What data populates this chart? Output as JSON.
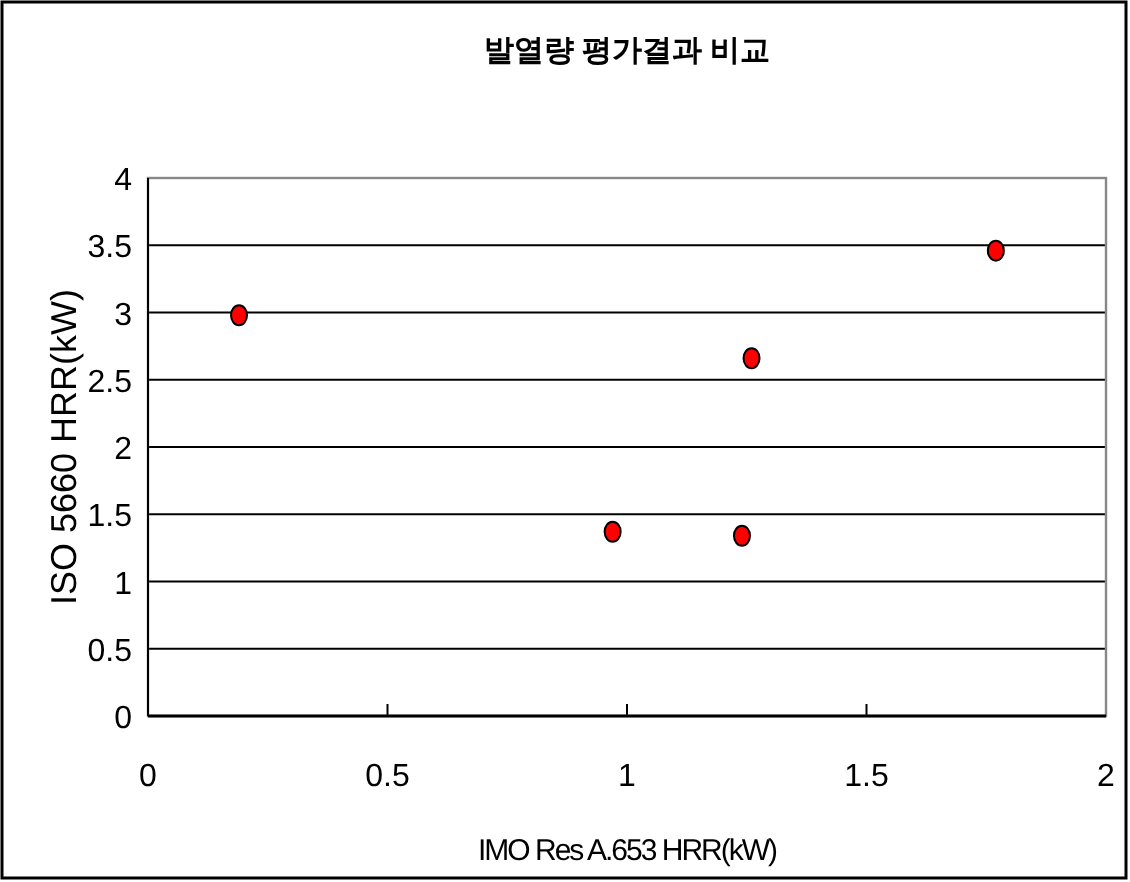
{
  "chart_data": {
    "type": "scatter",
    "title": "발열량 평가결과 비교",
    "xlabel": "IMO Res A.653 HRR(kW)",
    "ylabel": "ISO 5660 HRR(kW)",
    "x": [
      0.19,
      0.97,
      1.24,
      1.26,
      1.77
    ],
    "series": [
      {
        "color": "#ff0000",
        "values": [
          2.98,
          1.37,
          1.34,
          2.66,
          3.46
        ]
      }
    ],
    "xlim": [
      0,
      2
    ],
    "xticks": [
      0,
      0.5,
      1,
      1.5,
      2
    ],
    "ylim": [
      0,
      4
    ],
    "yticks": [
      0,
      0.5,
      1,
      1.5,
      2,
      2.5,
      3,
      3.5,
      4
    ],
    "grid": "y",
    "marker": "circle"
  }
}
